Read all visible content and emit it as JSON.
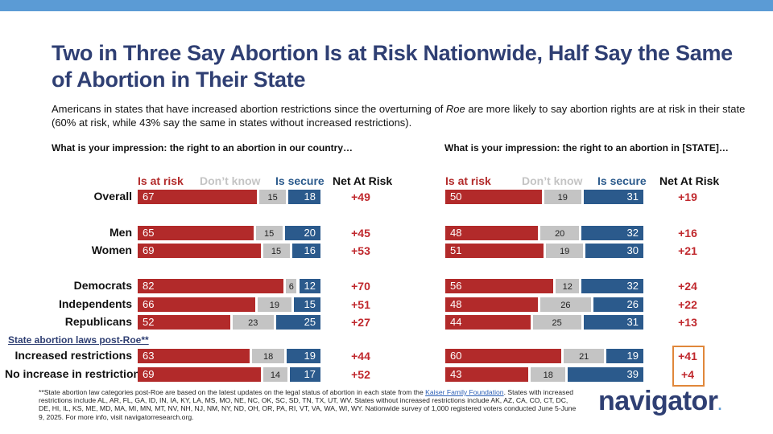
{
  "title": "Two in Three Say Abortion Is at Risk Nationwide, Half Say the Same of Abortion in Their State",
  "subtitle_pre": "Americans in states that have increased abortion restrictions since the overturning of ",
  "subtitle_em": "Roe",
  "subtitle_post": " are more likely to say abortion rights are at risk in their state (60% at risk, while 43% say the same in states without increased restrictions).",
  "section_label": "State abortion laws post-Roe**",
  "footnote_pre": "**State abortion law categories post-Roe are based on the latest updates on the legal status of abortion in each state from the ",
  "footnote_link": "Kaiser Family Foundation",
  "footnote_post": ". States with increased restrictions include AL, AR, FL, GA, ID, IN, IA, KY, LA, MS, MO, NE, NC, OK, SC, SD, TN, TX, UT, WV. States without increased restrictions include AK, AZ, CA, CO, CT, DC, DE, HI, IL, KS, ME, MD, MA, MI, MN, MT, NV, NH, NJ, NM, NY, ND, OH, OR, PA, RI, VT, VA, WA, WI, WY. Nationwide survey of 1,000 registered voters conducted June 5-June 9, 2025. For more info, visit navigatorresearch.org.",
  "logo": "navigator",
  "logo_dot": ".",
  "colors": {
    "risk": "#b22a2a",
    "dont_know": "#c4c4c4",
    "secure": "#2b5a8c",
    "net": "#c0282d",
    "title": "#2f3f73"
  },
  "chart_data": [
    {
      "type": "bar",
      "orientation": "horizontal-stacked",
      "title": "What is your impression: the right to an abortion in our country…",
      "legend": [
        "Is at risk",
        "Don’t know",
        "Is secure"
      ],
      "net_header": "Net At Risk",
      "categories": [
        "Overall",
        "Men",
        "Women",
        "Democrats",
        "Independents",
        "Republicans",
        "Increased restrictions",
        "No increase in restrictions"
      ],
      "series": [
        {
          "name": "Is at risk",
          "values": [
            67,
            65,
            69,
            82,
            66,
            52,
            63,
            69
          ]
        },
        {
          "name": "Don’t know",
          "values": [
            15,
            15,
            15,
            6,
            19,
            23,
            18,
            14
          ]
        },
        {
          "name": "Is secure",
          "values": [
            18,
            20,
            16,
            12,
            15,
            25,
            19,
            17
          ]
        }
      ],
      "net": [
        "+49",
        "+45",
        "+53",
        "+70",
        "+51",
        "+27",
        "+44",
        "+52"
      ]
    },
    {
      "type": "bar",
      "orientation": "horizontal-stacked",
      "title": "What is your impression: the right to an abortion in [STATE]…",
      "legend": [
        "Is at risk",
        "Don’t know",
        "Is secure"
      ],
      "net_header": "Net At Risk",
      "categories": [
        "Overall",
        "Men",
        "Women",
        "Democrats",
        "Independents",
        "Republicans",
        "Increased restrictions",
        "No increase in restrictions"
      ],
      "series": [
        {
          "name": "Is at risk",
          "values": [
            50,
            48,
            51,
            56,
            48,
            44,
            60,
            43
          ]
        },
        {
          "name": "Don’t know",
          "values": [
            19,
            20,
            19,
            12,
            26,
            25,
            21,
            18
          ]
        },
        {
          "name": "Is secure",
          "values": [
            31,
            32,
            30,
            32,
            26,
            31,
            19,
            39
          ]
        }
      ],
      "net": [
        "+19",
        "+16",
        "+21",
        "+24",
        "+22",
        "+13",
        "+41",
        "+4"
      ],
      "highlighted_rows": [
        6,
        7
      ]
    }
  ]
}
